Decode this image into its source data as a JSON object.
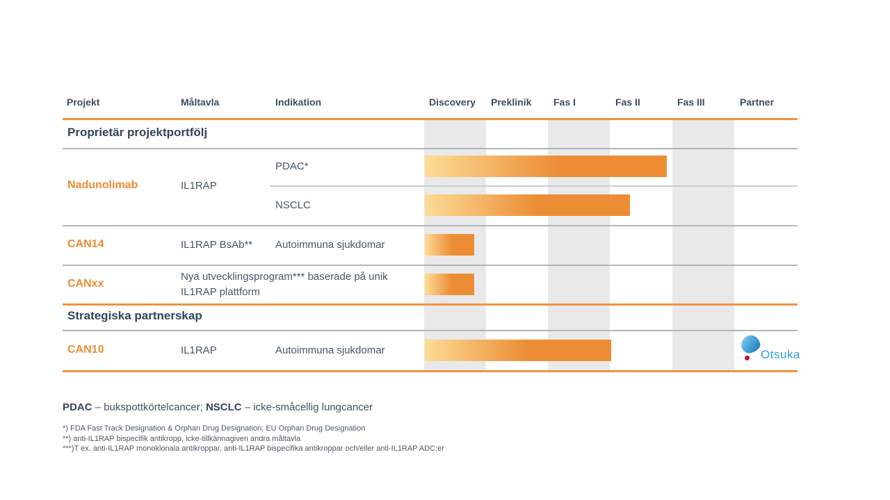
{
  "colors": {
    "accent_orange": "#EF9440",
    "project_orange": "#ED8B33",
    "bar_gradient_start": "#FCDC96",
    "bar_gradient_end": "#EC8D36",
    "text_navy": "#3B4C66",
    "column_stripe_gray": "#E9E9E9",
    "row_line_gray": "#ADB7BC",
    "otsuka_blue": "#2FA0D8",
    "otsuka_red": "#C51230"
  },
  "table": {
    "columns": {
      "project": "Projekt",
      "target": "Måltavla",
      "indication": "Indikation"
    },
    "stages": [
      "Discovery",
      "Preklinik",
      "Fas I",
      "Fas II",
      "Fas III",
      "Partner"
    ],
    "sections": [
      {
        "title": "Proprietär projektportfölj",
        "rows": [
          {
            "project": "Nadunolimab",
            "target": "IL1RAP",
            "indications": [
              {
                "label": "PDAC*"
              },
              {
                "label": "NSCLC"
              }
            ]
          },
          {
            "project": "CAN14",
            "target": "IL1RAP BsAb**",
            "indication": "Autoimmuna sjukdomar"
          },
          {
            "project": "CANxx",
            "description": "Nya utvecklingsprogram*** baserade på unik IL1RAP plattform"
          }
        ]
      },
      {
        "title": "Strategiska partnerskap",
        "rows": [
          {
            "project": "CAN10",
            "target": "IL1RAP",
            "indication": "Autoimmuna sjukdomar",
            "partner": "Otsuka"
          }
        ]
      }
    ]
  },
  "chart_data": {
    "type": "bar",
    "title": "",
    "x_axis_stages": [
      "Discovery",
      "Preklinik",
      "Fas I",
      "Fas II",
      "Fas III",
      "Partner"
    ],
    "x_range": [
      0,
      6
    ],
    "bars": [
      {
        "id": "nadunolimab-pdac",
        "project": "Nadunolimab",
        "indication": "PDAC*",
        "start": 0,
        "end": 3.9
      },
      {
        "id": "nadunolimab-nsclc",
        "project": "Nadunolimab",
        "indication": "NSCLC",
        "start": 0,
        "end": 3.3
      },
      {
        "id": "can14",
        "project": "CAN14",
        "indication": "Autoimmuna sjukdomar",
        "start": 0,
        "end": 0.8
      },
      {
        "id": "canxx",
        "project": "CANxx",
        "indication": "",
        "start": 0,
        "end": 0.8
      },
      {
        "id": "can10",
        "project": "CAN10",
        "indication": "Autoimmuna sjukdomar",
        "start": 0,
        "end": 3.0
      }
    ]
  },
  "partner_logo": {
    "name": "Otsuka",
    "text": "Otsuka"
  },
  "footnotes": {
    "definitions": {
      "term1": "PDAC",
      "def1": " – bukspottkörtelcancer; ",
      "term2": "NSCLC",
      "def2": " – icke-småcellig lungcancer"
    },
    "notes": [
      "*) FDA Fast Track Designation & Orphan Drug Designation; EU Orphan Drug Designation",
      "**) anti-IL1RAP bispecifik antikropp, icke-tillkännagiven andra måltavla",
      "***)T ex. anti-IL1RAP monoklonala antikroppar, anti-IL1RAP bispecifika antikroppar och/eller anti-IL1RAP ADC:er"
    ]
  }
}
